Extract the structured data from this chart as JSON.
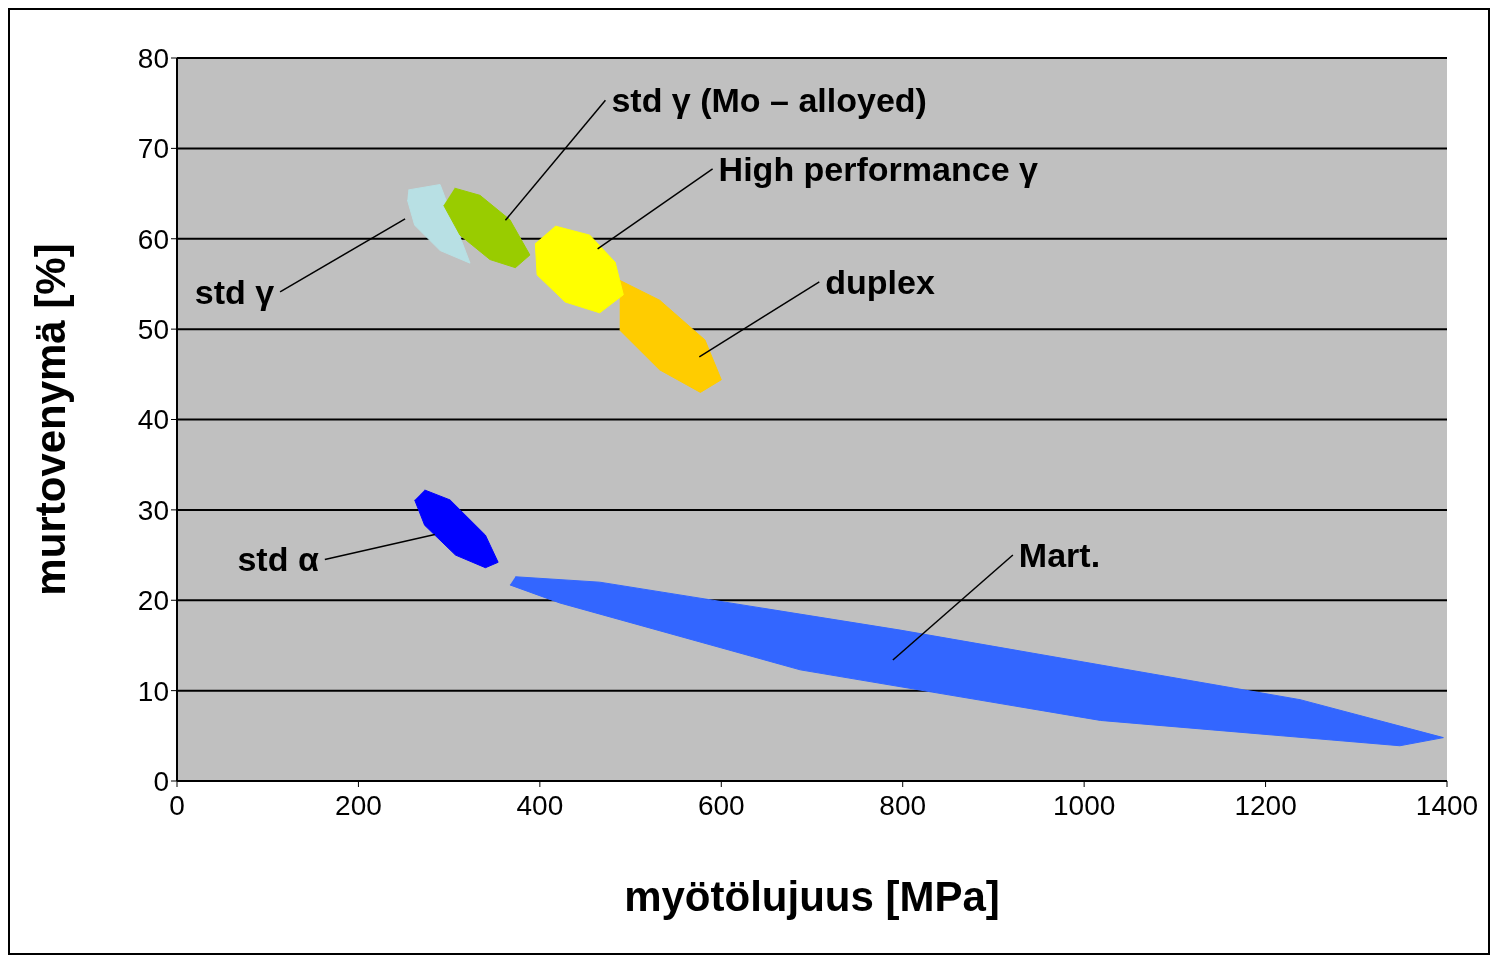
{
  "chart_data": {
    "type": "area",
    "xlabel": "myötölujuus [MPa]",
    "ylabel": "murtovenymä [%]",
    "xlim": [
      0,
      1400
    ],
    "xticks": [
      0,
      200,
      400,
      600,
      800,
      1000,
      1200,
      1400
    ],
    "ylim": [
      0,
      80
    ],
    "yticks": [
      0,
      10,
      20,
      30,
      40,
      50,
      60,
      70,
      80
    ],
    "grid": "y",
    "legend": false,
    "marker": "none",
    "series": [
      {
        "name": "std γ",
        "color": "#b8e0e4",
        "x": [
          255,
          290,
          323,
          290,
          262,
          254
        ],
        "values": [
          65.4,
          66,
          57.3,
          58.7,
          61.5,
          64.3
        ]
      },
      {
        "name": "std γ (Mo – alloyed)",
        "color": "#99cc00",
        "x": [
          306,
          334,
          367,
          389,
          373,
          345,
          312,
          294
        ],
        "values": [
          65.6,
          64.8,
          62.1,
          58.2,
          56.8,
          57.7,
          60.4,
          63.7
        ]
      },
      {
        "name": "duplex",
        "color": "#ffcc00",
        "x": [
          488,
          532,
          582,
          600,
          577,
          532,
          488
        ],
        "values": [
          55.4,
          53.2,
          48.8,
          44.4,
          43,
          45.5,
          49.9
        ]
      },
      {
        "name": "High performance γ",
        "color": "#ffff00",
        "x": [
          417,
          455,
          483,
          492,
          466,
          428,
          397,
          395
        ],
        "values": [
          61.4,
          60.4,
          57.4,
          53.8,
          51.8,
          53,
          56,
          59.5
        ]
      },
      {
        "name": "std α",
        "color": "#0000ff",
        "x": [
          273,
          301,
          340,
          354,
          340,
          307,
          273,
          262
        ],
        "values": [
          32.2,
          31.1,
          27.2,
          24.2,
          23.6,
          25,
          28.3,
          31.1
        ]
      },
      {
        "name": "Mart.",
        "color": "#3366ff",
        "x": [
          373,
          466,
          797,
          1238,
          1396,
          1348,
          1018,
          687,
          422,
          367
        ],
        "values": [
          22.6,
          22,
          16.7,
          9,
          4.8,
          3.9,
          6.7,
          12.3,
          19.7,
          21.7
        ]
      }
    ]
  }
}
